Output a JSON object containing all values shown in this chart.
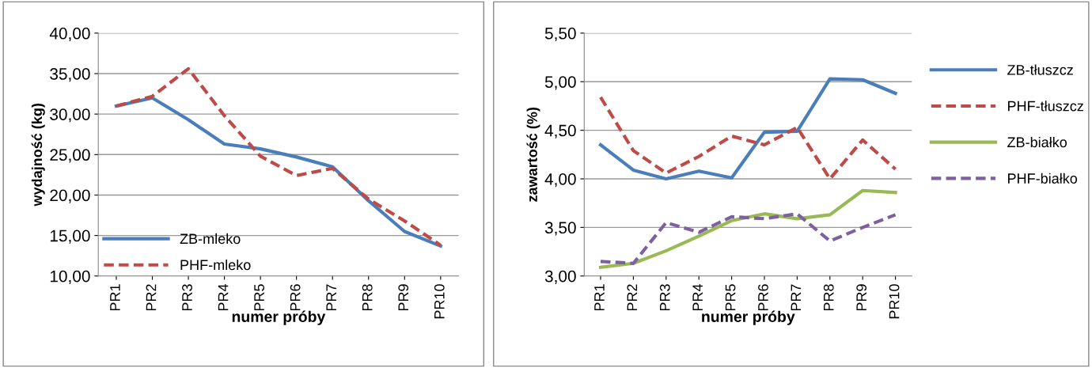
{
  "chart_data": [
    {
      "type": "line",
      "xlabel": "numer próby",
      "ylabel": "wydajność (kg)",
      "categories": [
        "PR1",
        "PR2",
        "PR3",
        "PR4",
        "PR5",
        "PR6",
        "PR7",
        "PR8",
        "PR9",
        "PR10"
      ],
      "series": [
        {
          "name": "ZB-mleko",
          "color": "#4a7ebb",
          "line_style": "solid",
          "values": [
            31.0,
            32.0,
            29.3,
            26.3,
            25.7,
            24.7,
            23.5,
            19.3,
            15.5,
            13.7
          ]
        },
        {
          "name": "PHF-mleko",
          "color": "#be4b48",
          "line_style": "dashed",
          "values": [
            31.0,
            32.2,
            35.6,
            29.8,
            24.8,
            22.4,
            23.3,
            19.5,
            16.8,
            13.8
          ]
        }
      ],
      "ylim": [
        10,
        40
      ],
      "yticks": [
        {
          "value": 10,
          "label": "10,00"
        },
        {
          "value": 15,
          "label": "15,00"
        },
        {
          "value": 20,
          "label": "20,00"
        },
        {
          "value": 25,
          "label": "25,00"
        },
        {
          "value": 30,
          "label": "30,00"
        },
        {
          "value": 35,
          "label": "35,00"
        },
        {
          "value": 40,
          "label": "40,00"
        }
      ],
      "grid": "y",
      "legend": "bottom left",
      "marker": "none"
    },
    {
      "type": "line",
      "xlabel": "numer próby",
      "ylabel": "zawartość (%)",
      "categories": [
        "PR1",
        "PR2",
        "PR3",
        "PR4",
        "PR5",
        "PR6",
        "PR7",
        "PR8",
        "PR9",
        "PR10"
      ],
      "series": [
        {
          "name": "ZB-tłuszcz",
          "color": "#4a7ebb",
          "line_style": "solid",
          "values": [
            4.35,
            4.09,
            4.0,
            4.08,
            4.01,
            4.48,
            4.49,
            5.03,
            5.02,
            4.88
          ]
        },
        {
          "name": "PHF-tłuszcz",
          "color": "#be4b48",
          "line_style": "dashed",
          "values": [
            4.84,
            4.29,
            4.06,
            4.23,
            4.44,
            4.35,
            4.53,
            4.0,
            4.4,
            4.1
          ]
        },
        {
          "name": "ZB-białko",
          "color": "#98b954",
          "line_style": "solid",
          "values": [
            3.09,
            3.13,
            3.26,
            3.41,
            3.57,
            3.64,
            3.59,
            3.63,
            3.88,
            3.86
          ]
        },
        {
          "name": "PHF-białko",
          "color": "#7d60a0",
          "line_style": "dashed",
          "values": [
            3.15,
            3.13,
            3.55,
            3.45,
            3.61,
            3.59,
            3.64,
            3.36,
            3.5,
            3.63
          ]
        }
      ],
      "ylim": [
        3,
        5.5
      ],
      "yticks": [
        {
          "value": 3,
          "label": "3,00"
        },
        {
          "value": 3.5,
          "label": "3,50"
        },
        {
          "value": 4,
          "label": "4,00"
        },
        {
          "value": 4.5,
          "label": "4,50"
        },
        {
          "value": 5,
          "label": "5,00"
        },
        {
          "value": 5.5,
          "label": "5,50"
        }
      ],
      "grid": "y",
      "legend": "right",
      "marker": "none"
    }
  ]
}
